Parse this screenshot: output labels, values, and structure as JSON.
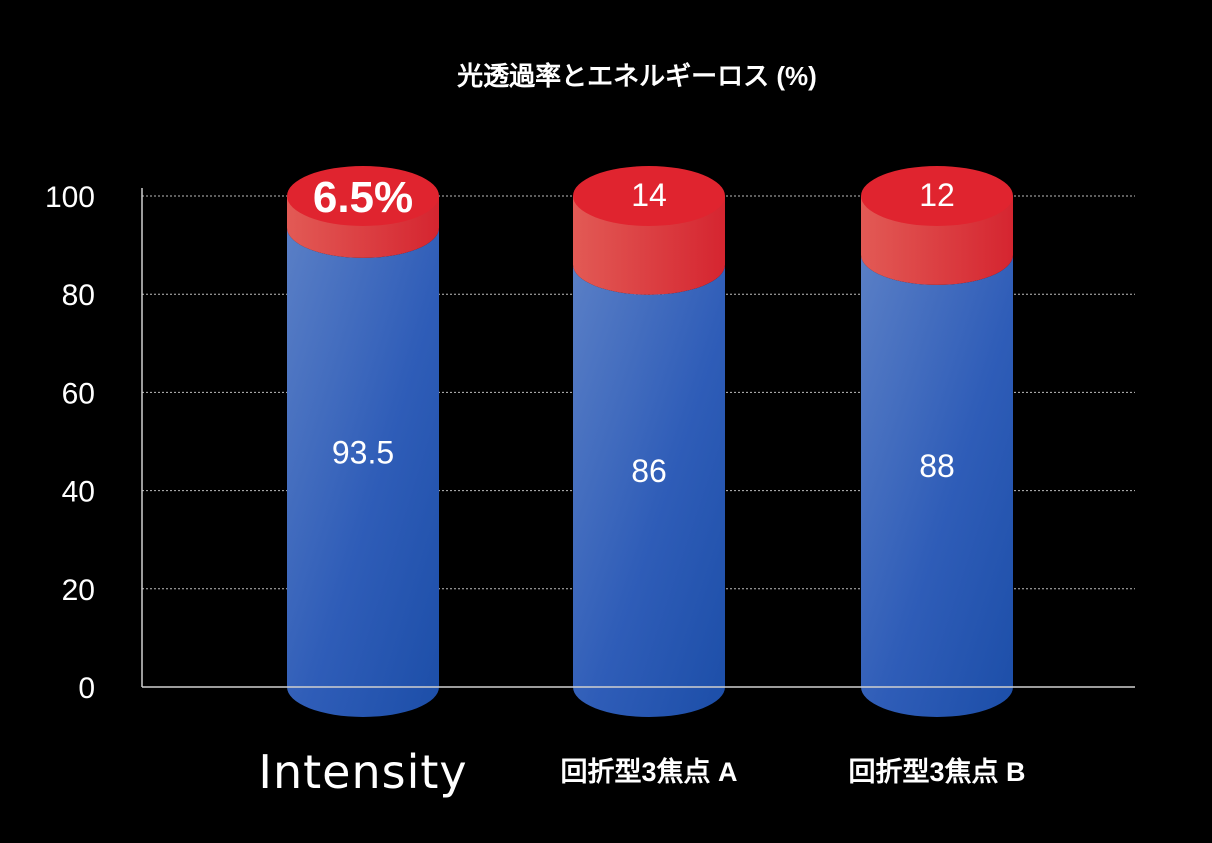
{
  "chart_data": {
    "type": "bar",
    "stacked": true,
    "title": "光透過率とエネルギーロス (%)",
    "categories": [
      "Intensity",
      "回折型3焦点 A",
      "回折型3焦点 B"
    ],
    "series": [
      {
        "values": [
          93.5,
          86,
          88
        ],
        "color": "#2f5db8"
      },
      {
        "values": [
          6.5,
          14,
          12
        ],
        "color": "#e0242f"
      }
    ],
    "data_labels": {
      "bottom": [
        "93.5",
        "86",
        "88"
      ],
      "top": [
        "6.5%",
        "14",
        "12"
      ]
    },
    "ylim": [
      0,
      100
    ],
    "yticks": [
      "0",
      "20",
      "40",
      "60",
      "80",
      "100"
    ],
    "grid": true,
    "xlabel": "",
    "ylabel": ""
  }
}
